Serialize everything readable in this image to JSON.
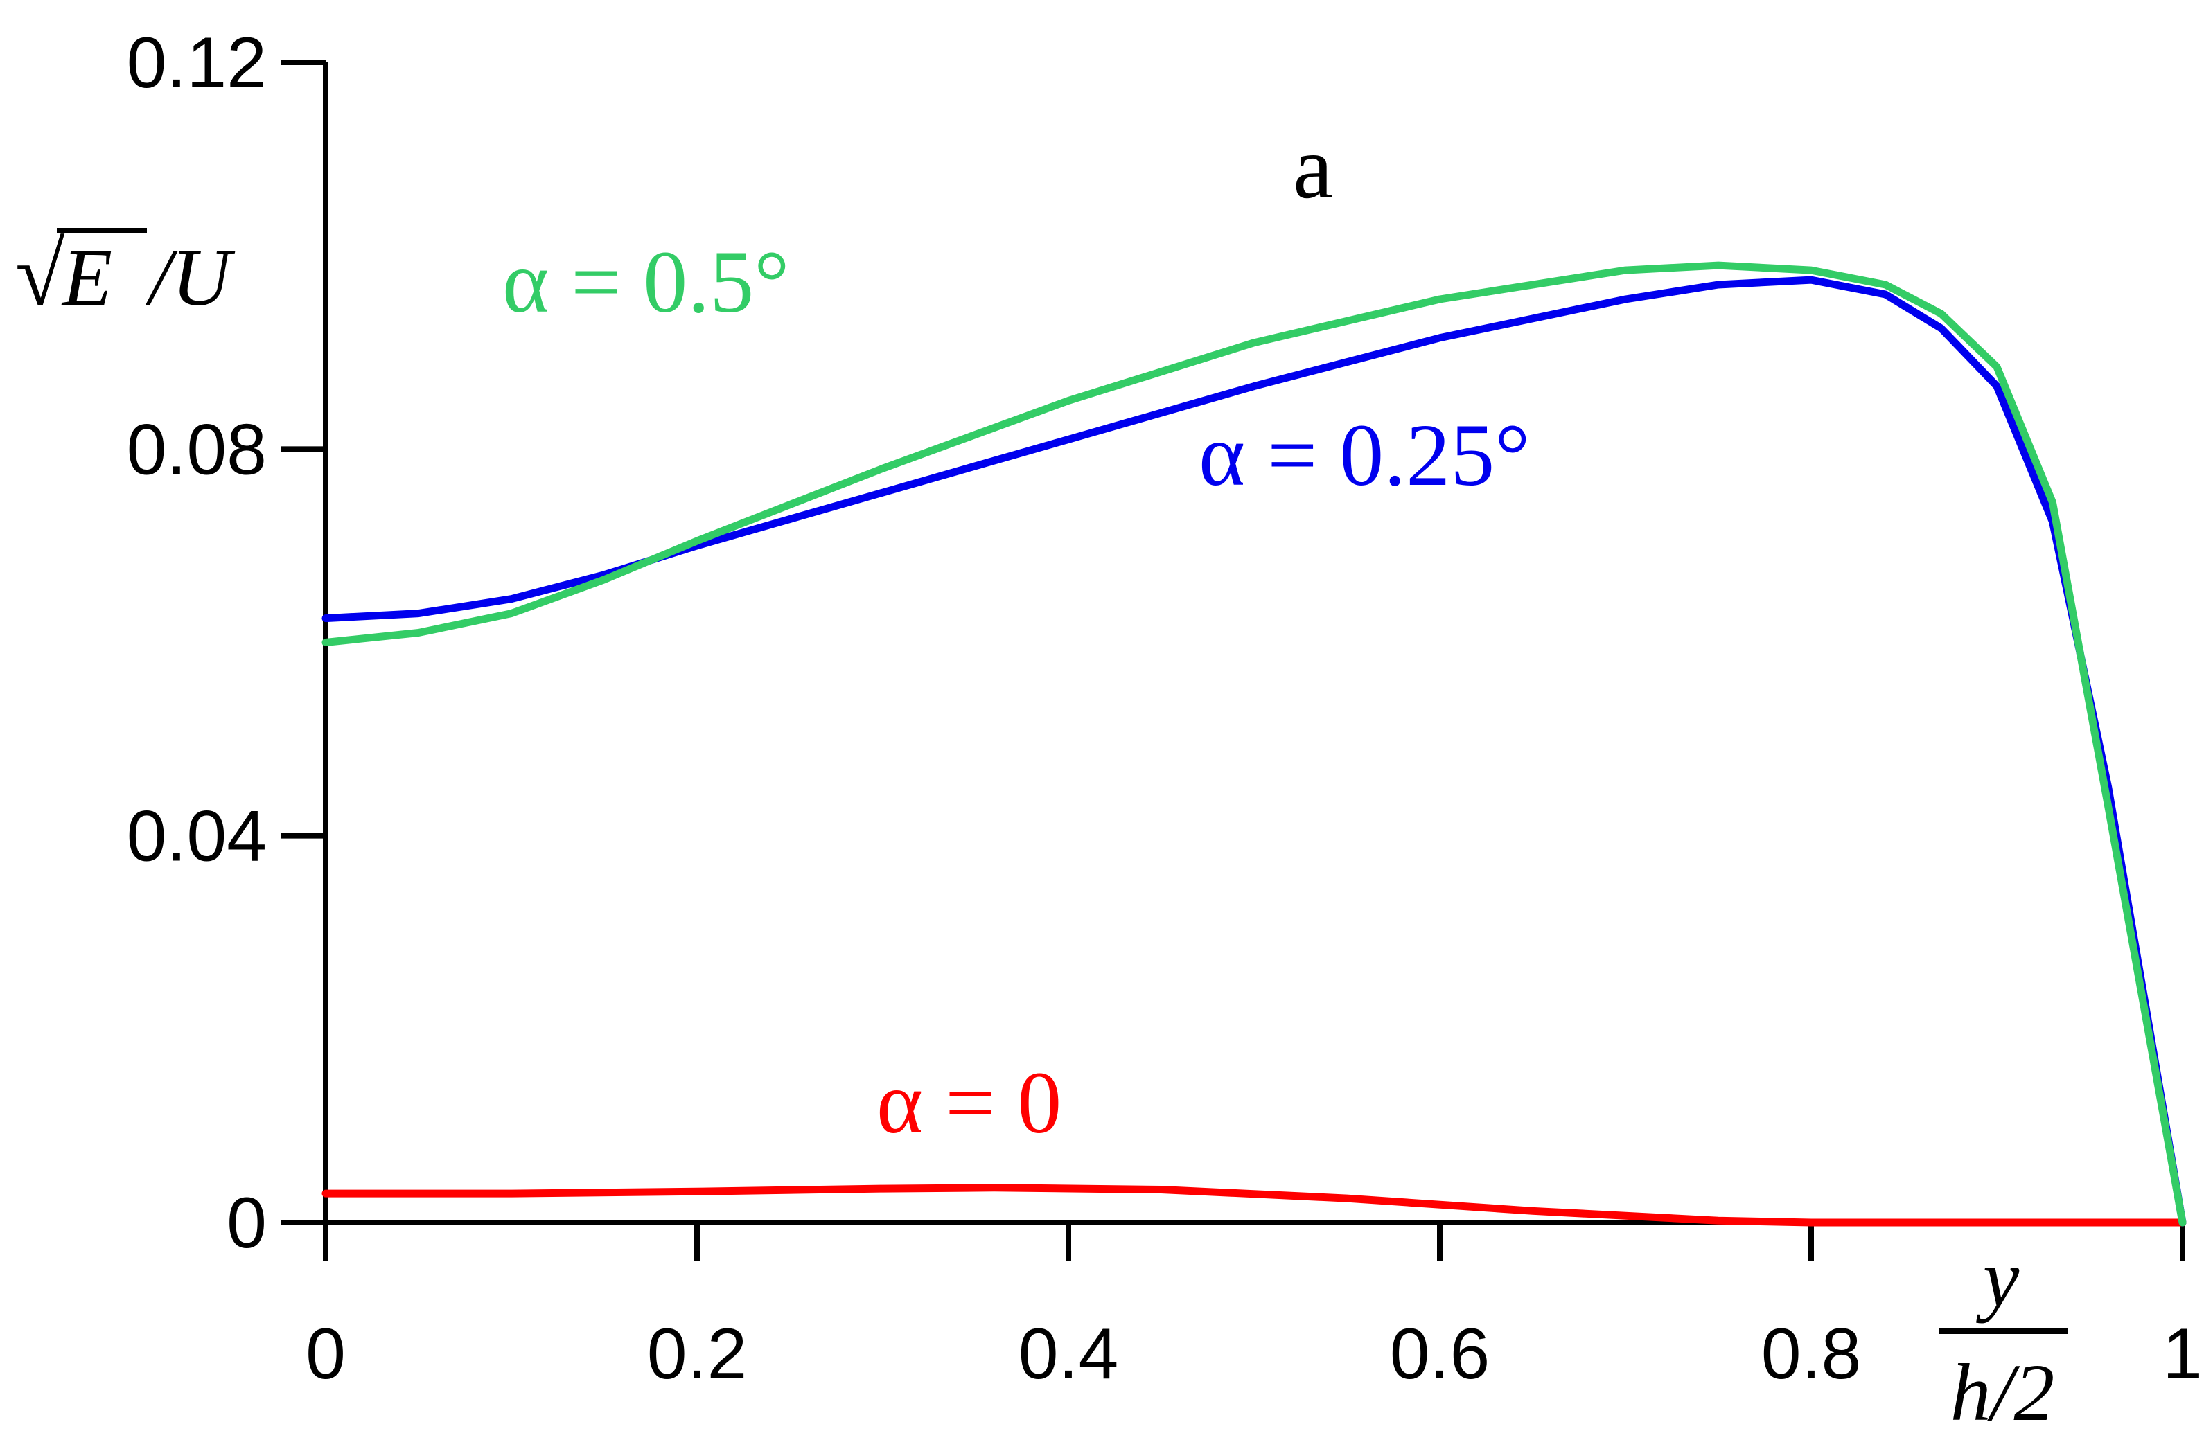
{
  "chart_data": {
    "type": "line",
    "panel_label": "a",
    "title": "",
    "xlabel": {
      "numerator": "y",
      "denominator": "h/2"
    },
    "ylabel": {
      "radical": "√",
      "variable": "E",
      "divisor": "/U"
    },
    "xlim": [
      0,
      1
    ],
    "ylim": [
      0,
      0.12
    ],
    "xticks": [
      0,
      0.2,
      0.4,
      0.6,
      0.8,
      1
    ],
    "xtick_labels": [
      "0",
      "0.2",
      "0.4",
      "0.6",
      "0.8",
      "1"
    ],
    "yticks": [
      0,
      0.04,
      0.08,
      0.12
    ],
    "ytick_labels": [
      "0",
      "0.04",
      "0.08",
      "0.12"
    ],
    "grid": false,
    "series": [
      {
        "name": "α = 0",
        "color": "#ff0000",
        "x": [
          0,
          0.1,
          0.2,
          0.3,
          0.36,
          0.45,
          0.55,
          0.65,
          0.75,
          0.8,
          0.9,
          1.0
        ],
        "y": [
          0.003,
          0.003,
          0.0032,
          0.0035,
          0.0036,
          0.0034,
          0.0025,
          0.0012,
          0.0002,
          0,
          0,
          0
        ]
      },
      {
        "name": "α = 0.25°",
        "color": "#0000ee",
        "x": [
          0,
          0.05,
          0.1,
          0.15,
          0.2,
          0.3,
          0.4,
          0.5,
          0.6,
          0.7,
          0.75,
          0.8,
          0.84,
          0.87,
          0.9,
          0.93,
          0.96,
          1.0
        ],
        "y": [
          0.0625,
          0.063,
          0.0645,
          0.067,
          0.07,
          0.0755,
          0.081,
          0.0865,
          0.0915,
          0.0955,
          0.097,
          0.0975,
          0.096,
          0.0925,
          0.0865,
          0.0725,
          0.045,
          0
        ]
      },
      {
        "name": "α = 0.5°",
        "color": "#33cc66",
        "x": [
          0,
          0.05,
          0.1,
          0.15,
          0.2,
          0.3,
          0.4,
          0.5,
          0.6,
          0.7,
          0.75,
          0.8,
          0.84,
          0.87,
          0.9,
          0.93,
          0.96,
          1.0
        ],
        "y": [
          0.06,
          0.061,
          0.063,
          0.0665,
          0.0705,
          0.078,
          0.085,
          0.091,
          0.0955,
          0.0985,
          0.099,
          0.0985,
          0.097,
          0.094,
          0.0885,
          0.0745,
          0.043,
          0
        ]
      }
    ]
  },
  "labels": {
    "green": "α = 0.5°",
    "blue": "α = 0.25°",
    "red": "α = 0"
  }
}
